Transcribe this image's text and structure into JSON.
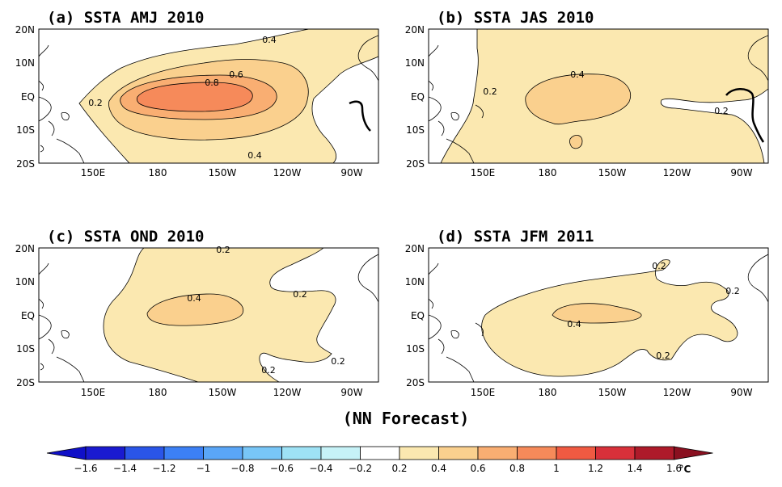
{
  "figure_title": "(NN Forecast)",
  "colorbar": {
    "unit": "°C",
    "labels": [
      "-1.6",
      "-1.4",
      "-1.2",
      "-1",
      "-0.8",
      "-0.6",
      "-0.4",
      "-0.2",
      "0.2",
      "0.4",
      "0.6",
      "0.8",
      "1",
      "1.2",
      "1.4",
      "1.6"
    ],
    "colors": [
      "#1a1ad0",
      "#2a55e8",
      "#3c80f5",
      "#5aa6f7",
      "#78c6f7",
      "#9ee2f5",
      "#c6f2f7",
      "#ffffff",
      "#fbe8b0",
      "#fad08e",
      "#f9ae72",
      "#f68a5a",
      "#f05a42",
      "#d8303a",
      "#ae1a2a"
    ],
    "low_arrow_color": "#1010c8",
    "high_arrow_color": "#8a1020"
  },
  "axes": {
    "lat_ticks": [
      "20N",
      "10N",
      "EQ",
      "10S",
      "20S"
    ],
    "lon_ticks": [
      "150E",
      "180",
      "150W",
      "120W",
      "90W"
    ]
  },
  "panels": [
    {
      "title": "(a) SSTA  AMJ 2010",
      "labels": [
        "0.4",
        "0.6",
        "0.8",
        "0.2",
        "0.4"
      ]
    },
    {
      "title": "(b) SSTA  JAS 2010",
      "labels": [
        "0.4",
        "0.2",
        "0.2"
      ]
    },
    {
      "title": "(c) SSTA  OND 2010",
      "labels": [
        "0.2",
        "0.4",
        "0.2",
        "0.2",
        "0.2"
      ]
    },
    {
      "title": "(d) SSTA  JFM 2011",
      "labels": [
        "0.2",
        "0.2",
        "0.4",
        "0.2"
      ]
    }
  ]
}
